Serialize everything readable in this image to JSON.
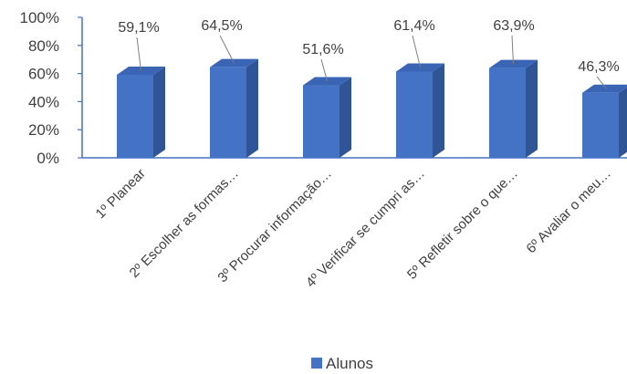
{
  "chart_data": {
    "type": "bar",
    "bar_style": "3d",
    "categories": [
      "1º Planear",
      "2º Escolher as formas…",
      "3º Procurar informação…",
      "4º Verificar se cumpri as…",
      "5º Refletir sobre o que…",
      "6º Avaliar o meu…"
    ],
    "series": [
      {
        "name": "Alunos",
        "values": [
          59.1,
          64.5,
          51.6,
          61.4,
          63.9,
          46.3
        ],
        "labels": [
          "59,1%",
          "64,5%",
          "51,6%",
          "61,4%",
          "63,9%",
          "46,3%"
        ],
        "color": "#4472C4",
        "side_color": "#2F5597",
        "top_color": "#3A65B5"
      }
    ],
    "ylim": [
      0,
      100
    ],
    "yticks": [
      "0%",
      "20%",
      "40%",
      "60%",
      "80%",
      "100%"
    ],
    "ytick_values": [
      0,
      20,
      40,
      60,
      80,
      100
    ],
    "xlabel": "",
    "ylabel": "",
    "title": "",
    "grid": false,
    "axis_color": "#4472C4",
    "legend": {
      "position": "bottom",
      "entries": [
        "Alunos"
      ]
    }
  }
}
